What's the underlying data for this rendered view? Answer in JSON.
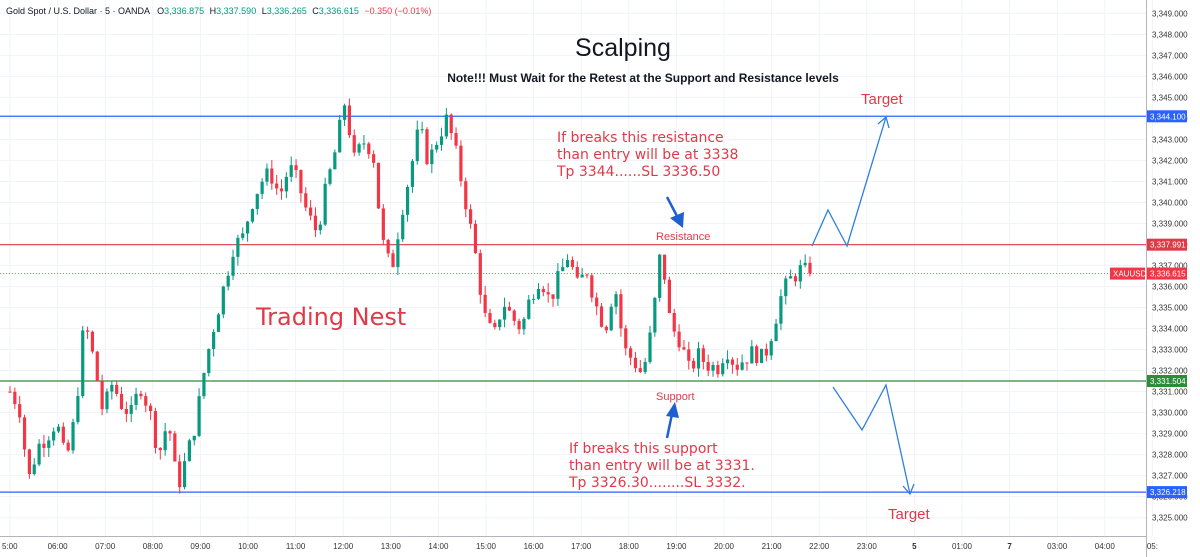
{
  "header": {
    "symbol": "Gold Spot / U.S. Dollar · 5 · OANDA",
    "open_label": "O",
    "open": "3,336.875",
    "high_label": "H",
    "high": "3,337.590",
    "low_label": "L",
    "low": "3,336.265",
    "close_label": "C",
    "close": "3,336.615",
    "change": "−0.350 (−0.01%)"
  },
  "annotations": {
    "title": "Scalping",
    "note": "Note!!! Must Wait for the Retest at the Support and Resistance levels",
    "brand": "Trading Nest",
    "resistance_text": [
      "If breaks this resistance",
      "than entry will be at 3338",
      "Tp 3344......SL 3336.50"
    ],
    "support_text": [
      "If breaks this support",
      "than entry will be at 3331.",
      "Tp 3326.30........SL 3332."
    ],
    "resistance_label": "Resistance",
    "support_label": "Support",
    "target_top": "Target",
    "target_bottom": "Target"
  },
  "colors": {
    "up": "#089981",
    "down": "#f23645",
    "blue_line": "#2962ff",
    "red_line": "#e03a48",
    "green_line": "#2e8b3a",
    "arrow": "#2f7fe0",
    "text_red": "#e03a48"
  },
  "chart_data": {
    "type": "candlestick",
    "symbol": "XAUUSD",
    "timeframe": "5",
    "x_ticks": [
      "5:00",
      "06:00",
      "07:00",
      "08:00",
      "09:00",
      "10:00",
      "11:00",
      "12:00",
      "13:00",
      "14:00",
      "15:00",
      "16:00",
      "17:00",
      "18:00",
      "19:00",
      "20:00",
      "21:00",
      "22:00",
      "23:00",
      "5",
      "01:00",
      "7",
      "03:00",
      "04:00",
      "05:"
    ],
    "y_ticks": [
      3325,
      3326,
      3327,
      3328,
      3329,
      3330,
      3331,
      3332,
      3333,
      3334,
      3335,
      3336,
      3337,
      3338,
      3339,
      3340,
      3341,
      3342,
      3343,
      3344,
      3345,
      3346,
      3347,
      3348,
      3349
    ],
    "ylim": [
      3324.7,
      3349.3
    ],
    "levels": [
      {
        "price": 3344.1,
        "label": "3,344.100",
        "color": "#2962ff"
      },
      {
        "price": 3337.991,
        "label": "3,337.991",
        "color": "#e03a48"
      },
      {
        "price": 3331.504,
        "label": "3,331.504",
        "color": "#2e8b3a"
      },
      {
        "price": 3326.218,
        "label": "3,326.218",
        "color": "#2962ff"
      }
    ],
    "current_price": {
      "symbol": "XAUUSD",
      "price": 3336.615,
      "label": "3,336.615"
    },
    "path": [
      3331.0,
      3330.3,
      3326.8,
      3328.4,
      3328.9,
      3329.6,
      3327.6,
      3329.8,
      3334.4,
      3332.5,
      3330.0,
      3331.4,
      3330.4,
      3329.9,
      3331.3,
      3330.1,
      3328.0,
      3329.7,
      3326.4,
      3327.9,
      3329.6,
      3332.3,
      3334.3,
      3336.0,
      3337.9,
      3338.3,
      3340.0,
      3341.0,
      3341.4,
      3340.3,
      3341.7,
      3340.9,
      3339.4,
      3338.6,
      3340.7,
      3342.5,
      3344.8,
      3342.0,
      3342.9,
      3342.5,
      3338.2,
      3336.7,
      3339.4,
      3341.4,
      3343.6,
      3341.9,
      3343.1,
      3344.0,
      3342.2,
      3340.0,
      3337.6,
      3334.6,
      3333.5,
      3335.3,
      3334.5,
      3334.0,
      3335.6,
      3336.5,
      3335.3,
      3336.4,
      3337.5,
      3336.0,
      3336.8,
      3335.1,
      3334.0,
      3336.2,
      3333.0,
      3332.5,
      3331.8,
      3334.0,
      3337.9,
      3334.1,
      3333.5,
      3332.0,
      3332.7,
      3332.3,
      3332.1,
      3333.1,
      3332.2,
      3332.6,
      3332.9,
      3332.5,
      3334.0,
      3335.7,
      3336.4,
      3336.8,
      3336.6
    ]
  }
}
